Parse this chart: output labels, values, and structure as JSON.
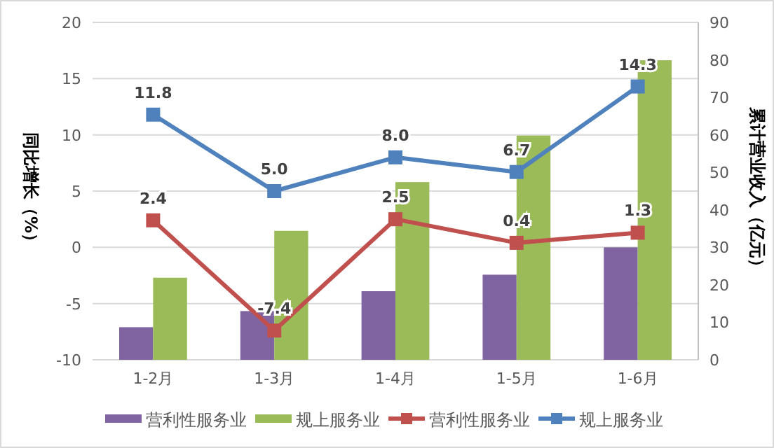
{
  "chart_data": {
    "type": "bar",
    "categories": [
      "1-2月",
      "1-3月",
      "1-4月",
      "1-5月",
      "1-6月"
    ],
    "ylabel": "同比增长（%）",
    "y2label": "累计营业收入（亿元）",
    "ylim": [
      -10,
      20
    ],
    "yticks": [
      -10,
      -5,
      0,
      5,
      10,
      15,
      20
    ],
    "y2lim": [
      0,
      90
    ],
    "y2ticks": [
      0,
      10,
      20,
      30,
      40,
      50,
      60,
      70,
      80,
      90
    ],
    "grid": "y",
    "legend": "bottom",
    "series": [
      {
        "name": "营利性服务业",
        "axis": "y2",
        "color": "#8064a2",
        "values": [
          8.7,
          13.0,
          18.3,
          22.7,
          30.0
        ]
      },
      {
        "name": "规上服务业",
        "axis": "y2",
        "color": "#9bbb59",
        "values": [
          21.9,
          34.4,
          47.4,
          59.8,
          79.9
        ]
      },
      {
        "name": "营利性服务业",
        "type": "line",
        "marker": "square",
        "color": "#c0504d",
        "values": [
          2.4,
          -7.4,
          2.5,
          0.4,
          1.3
        ],
        "value_labels": [
          "2.4",
          "-7.4",
          "2.5",
          "0.4",
          "1.3"
        ]
      },
      {
        "name": "规上服务业",
        "type": "line",
        "marker": "square",
        "color": "#4f81bd",
        "values": [
          11.8,
          5.0,
          8.0,
          6.7,
          14.3
        ],
        "value_labels": [
          "11.8",
          "5.0",
          "8.0",
          "6.7",
          "14.3"
        ]
      }
    ]
  }
}
